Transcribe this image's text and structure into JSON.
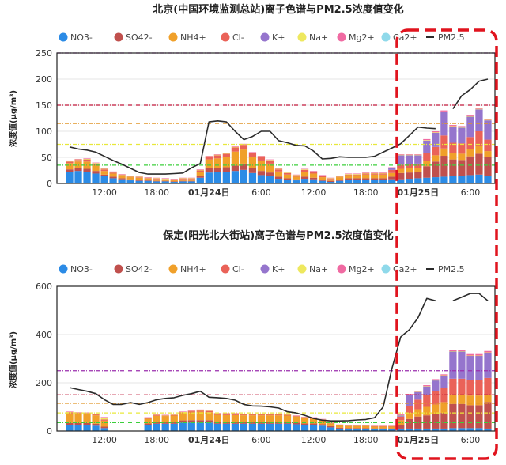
{
  "colors": {
    "NO3-": "#2b8be6",
    "SO42-": "#c0504d",
    "NH4+": "#f0a02a",
    "Cl-": "#ea6258",
    "K+": "#9575cd",
    "Na+": "#eee85e",
    "Mg2+": "#f06aa2",
    "Ca2+": "#8fd9ea",
    "PM2.5": "#2b2b2b",
    "highlight_box": "#e0141e"
  },
  "chart_data": [
    {
      "type": "bar",
      "stacked": true,
      "title": "北京(中国环境监测总站)离子色谱与PM2.5浓度值变化",
      "ylabel": "浓度值(μg/m³)",
      "ylim": [
        0,
        250
      ],
      "yticks": [
        "0",
        "50",
        "100",
        "150",
        "200",
        "250"
      ],
      "xticks": [
        {
          "label": "12:00",
          "index": 4
        },
        {
          "label": "18:00",
          "index": 10
        },
        {
          "label": "01月24日",
          "index": 16
        },
        {
          "label": "6:00",
          "index": 22
        },
        {
          "label": "12:00",
          "index": 28
        },
        {
          "label": "18:00",
          "index": 34
        },
        {
          "label": "01月25日",
          "index": 40
        },
        {
          "label": "6:00",
          "index": 46
        }
      ],
      "legend": [
        "NO3-",
        "SO42-",
        "NH4+",
        "Cl-",
        "K+",
        "Na+",
        "Mg2+",
        "Ca2+",
        "PM2.5"
      ],
      "legend_position": "top",
      "threshold_lines": [
        {
          "value": 250,
          "color": "#9b2fae"
        },
        {
          "value": 150,
          "color": "#c0183a"
        },
        {
          "value": 115,
          "color": "#e0962a"
        },
        {
          "value": 75,
          "color": "#e8e83a"
        },
        {
          "value": 35,
          "color": "#3ccf3c"
        }
      ],
      "series": [
        {
          "name": "NO3-",
          "values": [
            22,
            24,
            22,
            19,
            14,
            10,
            8,
            6,
            5,
            5,
            4,
            4,
            3,
            4,
            4,
            11,
            21,
            22,
            22,
            24,
            26,
            20,
            16,
            14,
            9,
            7,
            6,
            9,
            8,
            5,
            3,
            5,
            7,
            7,
            7,
            7,
            7,
            8,
            8,
            9,
            10,
            11,
            12,
            13,
            14,
            15,
            16,
            17,
            15
          ]
        },
        {
          "name": "SO42-",
          "values": [
            5,
            5,
            6,
            5,
            3,
            3,
            2,
            2,
            2,
            1,
            1,
            1,
            1,
            1,
            1,
            4,
            8,
            8,
            9,
            10,
            12,
            9,
            8,
            7,
            4,
            3,
            2,
            4,
            3,
            2,
            2,
            2,
            3,
            3,
            3,
            3,
            3,
            5,
            12,
            12,
            12,
            22,
            30,
            40,
            32,
            30,
            36,
            40,
            35
          ]
        },
        {
          "name": "NH4+",
          "values": [
            12,
            13,
            14,
            11,
            7,
            6,
            5,
            4,
            4,
            3,
            3,
            2,
            2,
            3,
            3,
            7,
            17,
            18,
            20,
            27,
            27,
            21,
            20,
            17,
            10,
            7,
            5,
            9,
            8,
            5,
            3,
            5,
            6,
            6,
            7,
            7,
            7,
            7,
            8,
            8,
            8,
            10,
            12,
            14,
            12,
            12,
            14,
            15,
            12
          ]
        },
        {
          "name": "Cl-",
          "values": [
            3,
            3,
            4,
            3,
            3,
            2,
            1,
            1,
            1,
            1,
            1,
            1,
            1,
            1,
            1,
            3,
            5,
            6,
            6,
            8,
            9,
            8,
            7,
            6,
            4,
            3,
            2,
            4,
            3,
            2,
            1,
            1,
            1,
            1,
            2,
            2,
            2,
            6,
            8,
            8,
            8,
            15,
            16,
            25,
            20,
            20,
            23,
            28,
            22
          ]
        },
        {
          "name": "K+",
          "values": [
            0,
            0,
            0,
            0,
            0,
            0,
            0,
            0,
            0,
            0,
            0,
            0,
            0,
            0,
            0,
            0,
            0,
            0,
            0,
            0,
            0,
            0,
            0,
            0,
            0,
            0,
            0,
            0,
            0,
            0,
            0,
            0,
            0,
            0,
            0,
            0,
            0,
            3,
            18,
            17,
            16,
            24,
            27,
            45,
            31,
            30,
            39,
            42,
            37
          ]
        },
        {
          "name": "Na+",
          "values": [
            1,
            1,
            1,
            1,
            1,
            1,
            1,
            1,
            1,
            1,
            1,
            1,
            1,
            1,
            1,
            1,
            1,
            1,
            1,
            1,
            1,
            1,
            1,
            1,
            1,
            1,
            1,
            1,
            1,
            1,
            1,
            1,
            1,
            1,
            1,
            1,
            1,
            1,
            1,
            1,
            1,
            1,
            1,
            1,
            1,
            1,
            1,
            1,
            1
          ]
        },
        {
          "name": "Mg2+",
          "values": [
            1,
            1,
            1,
            1,
            1,
            1,
            1,
            1,
            1,
            1,
            1,
            1,
            1,
            1,
            1,
            1,
            1,
            1,
            1,
            1,
            1,
            1,
            1,
            1,
            1,
            1,
            1,
            1,
            1,
            1,
            1,
            1,
            1,
            1,
            1,
            1,
            1,
            1,
            1,
            1,
            1,
            2,
            2,
            2,
            2,
            2,
            2,
            2,
            2
          ]
        },
        {
          "name": "Ca2+",
          "values": [
            0,
            0,
            0,
            0,
            0,
            0,
            0,
            0,
            0,
            0,
            0,
            0,
            0,
            0,
            0,
            0,
            0,
            0,
            0,
            0,
            0,
            0,
            0,
            0,
            0,
            0,
            0,
            0,
            0,
            0,
            0,
            0,
            0,
            0,
            0,
            0,
            0,
            0,
            0,
            0,
            0,
            0,
            0,
            0,
            0,
            0,
            0,
            0,
            0
          ]
        },
        {
          "name": "PM2.5",
          "type": "line",
          "values": [
            70,
            66,
            64,
            60,
            52,
            44,
            37,
            29,
            21,
            18,
            18,
            18,
            19,
            20,
            30,
            38,
            118,
            120,
            118,
            100,
            84,
            90,
            100,
            100,
            82,
            78,
            73,
            72,
            62,
            47,
            48,
            51,
            50,
            50,
            50,
            52,
            60,
            68,
            76,
            92,
            108,
            106,
            105,
            null,
            143,
            168,
            180,
            196,
            200
          ]
        }
      ]
    },
    {
      "type": "bar",
      "stacked": true,
      "title": "保定(阳光北大街站)离子色谱与PM2.5浓度值变化",
      "ylabel": "浓度值(μg/m³)",
      "ylim": [
        0,
        600
      ],
      "yticks": [
        "0",
        "200",
        "400",
        "600"
      ],
      "xticks": [
        {
          "label": "12:00",
          "index": 4
        },
        {
          "label": "18:00",
          "index": 10
        },
        {
          "label": "01月24日",
          "index": 16
        },
        {
          "label": "6:00",
          "index": 22
        },
        {
          "label": "12:00",
          "index": 28
        },
        {
          "label": "18:00",
          "index": 34
        },
        {
          "label": "01月25日",
          "index": 40
        },
        {
          "label": "6:00",
          "index": 46
        }
      ],
      "legend": [
        "NO3-",
        "SO42-",
        "NH4+",
        "Cl-",
        "K+",
        "Na+",
        "Mg2+",
        "Ca2+",
        "PM2.5"
      ],
      "legend_position": "top",
      "threshold_lines": [
        {
          "value": 250,
          "color": "#9b2fae"
        },
        {
          "value": 150,
          "color": "#c0183a"
        },
        {
          "value": 115,
          "color": "#e0962a"
        },
        {
          "value": 75,
          "color": "#e8e83a"
        },
        {
          "value": 35,
          "color": "#3ccf3c"
        }
      ],
      "series": [
        {
          "name": "NO3-",
          "values": [
            25,
            25,
            25,
            22,
            12,
            0,
            0,
            0,
            0,
            25,
            30,
            30,
            30,
            35,
            35,
            35,
            35,
            30,
            30,
            30,
            30,
            30,
            30,
            30,
            30,
            30,
            28,
            25,
            25,
            22,
            15,
            10,
            8,
            8,
            8,
            7,
            7,
            7,
            10,
            10,
            10,
            10,
            10,
            10,
            12,
            12,
            12,
            12,
            10
          ]
        },
        {
          "name": "SO42-",
          "values": [
            8,
            8,
            8,
            8,
            6,
            0,
            0,
            0,
            0,
            6,
            8,
            8,
            8,
            9,
            10,
            10,
            10,
            9,
            8,
            8,
            8,
            8,
            8,
            8,
            8,
            8,
            7,
            6,
            6,
            6,
            5,
            4,
            4,
            4,
            4,
            4,
            4,
            4,
            15,
            40,
            50,
            55,
            60,
            65,
            100,
            100,
            95,
            95,
            110
          ]
        },
        {
          "name": "NH4+",
          "values": [
            40,
            38,
            37,
            35,
            25,
            0,
            0,
            0,
            0,
            20,
            25,
            24,
            26,
            30,
            32,
            35,
            33,
            28,
            28,
            28,
            27,
            27,
            27,
            27,
            27,
            26,
            24,
            22,
            20,
            16,
            12,
            9,
            8,
            8,
            8,
            7,
            7,
            7,
            20,
            25,
            30,
            35,
            40,
            45,
            40,
            40,
            40,
            40,
            30
          ]
        },
        {
          "name": "Cl-",
          "values": [
            5,
            4,
            4,
            4,
            5,
            0,
            0,
            0,
            0,
            3,
            3,
            2,
            3,
            4,
            5,
            5,
            5,
            5,
            5,
            5,
            4,
            4,
            4,
            4,
            4,
            4,
            3,
            3,
            3,
            3,
            2,
            2,
            2,
            2,
            2,
            2,
            2,
            2,
            15,
            30,
            40,
            50,
            55,
            60,
            65,
            65,
            65,
            65,
            70
          ]
        },
        {
          "name": "K+",
          "values": [
            0,
            0,
            0,
            0,
            0,
            0,
            0,
            0,
            0,
            0,
            0,
            0,
            0,
            0,
            0,
            0,
            0,
            0,
            0,
            0,
            0,
            0,
            0,
            0,
            0,
            0,
            0,
            0,
            0,
            0,
            0,
            0,
            0,
            0,
            0,
            0,
            0,
            0,
            5,
            45,
            32,
            35,
            45,
            50,
            113,
            113,
            100,
            100,
            105
          ]
        },
        {
          "name": "Na+",
          "values": [
            1,
            1,
            1,
            1,
            8,
            0,
            0,
            0,
            0,
            1,
            1,
            1,
            1,
            1,
            1,
            1,
            1,
            1,
            1,
            1,
            1,
            1,
            1,
            1,
            1,
            1,
            1,
            1,
            1,
            1,
            1,
            1,
            1,
            1,
            1,
            1,
            1,
            1,
            1,
            1,
            1,
            1,
            1,
            1,
            1,
            1,
            1,
            1,
            1
          ]
        },
        {
          "name": "Mg2+",
          "values": [
            2,
            2,
            2,
            2,
            2,
            0,
            0,
            0,
            0,
            2,
            2,
            2,
            2,
            2,
            3,
            3,
            3,
            2,
            2,
            2,
            2,
            2,
            2,
            2,
            2,
            2,
            2,
            2,
            2,
            2,
            1,
            1,
            1,
            1,
            1,
            1,
            1,
            1,
            3,
            3,
            3,
            4,
            4,
            4,
            6,
            6,
            6,
            6,
            6
          ]
        },
        {
          "name": "Ca2+",
          "values": [
            0,
            0,
            0,
            0,
            0,
            0,
            0,
            0,
            0,
            0,
            0,
            0,
            0,
            0,
            0,
            0,
            0,
            0,
            0,
            0,
            0,
            0,
            0,
            0,
            0,
            0,
            0,
            0,
            0,
            0,
            0,
            0,
            0,
            0,
            0,
            0,
            0,
            0,
            0,
            0,
            0,
            0,
            0,
            0,
            0,
            0,
            0,
            0,
            0
          ]
        },
        {
          "name": "PM2.5",
          "type": "line",
          "values": [
            180,
            172,
            165,
            155,
            130,
            110,
            110,
            118,
            110,
            118,
            130,
            135,
            138,
            148,
            155,
            165,
            140,
            138,
            135,
            128,
            110,
            104,
            103,
            100,
            95,
            80,
            75,
            65,
            52,
            45,
            42,
            42,
            43,
            46,
            48,
            55,
            100,
            260,
            390,
            420,
            470,
            550,
            540,
            null,
            540,
            555,
            570,
            570,
            540
          ]
        }
      ]
    }
  ]
}
